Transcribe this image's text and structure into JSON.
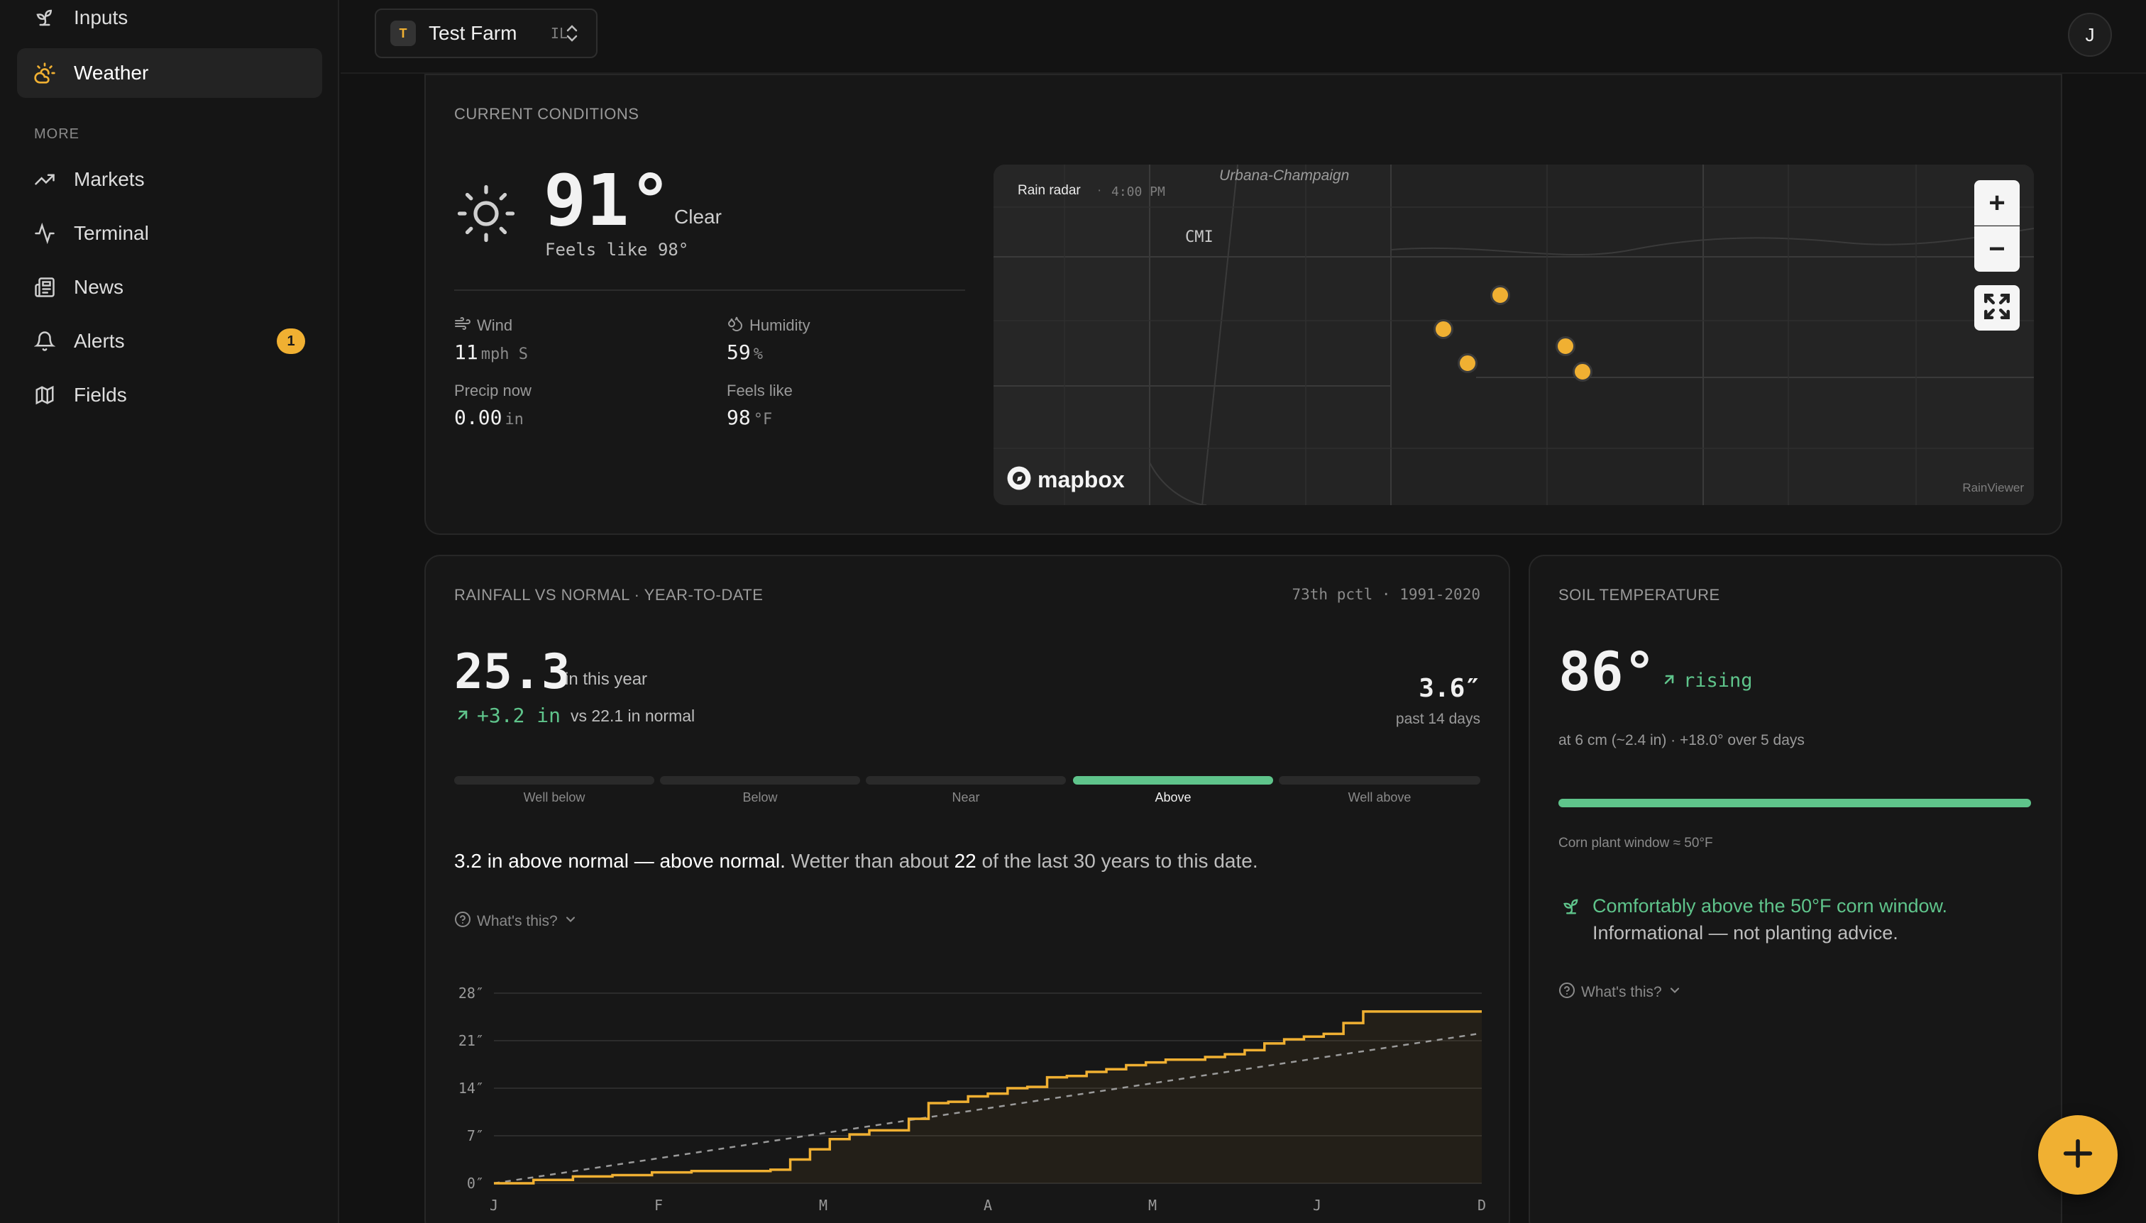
{
  "sidebar": {
    "items": [
      {
        "label": "Inputs",
        "icon": "seedling-icon",
        "active": false
      },
      {
        "label": "Weather",
        "icon": "sun-cloud-icon",
        "active": true
      },
      {
        "label": "Markets",
        "icon": "trending-up-icon",
        "active": false
      },
      {
        "label": "Terminal",
        "icon": "activity-icon",
        "active": false
      },
      {
        "label": "News",
        "icon": "newspaper-icon",
        "active": false
      },
      {
        "label": "Alerts",
        "icon": "bell-icon",
        "active": false,
        "badge": "1"
      },
      {
        "label": "Fields",
        "icon": "map-icon",
        "active": false
      }
    ],
    "more_label": "MORE"
  },
  "topbar": {
    "farm_initial": "T",
    "farm_name": "Test Farm",
    "farm_state": "IL",
    "user_initial": "J"
  },
  "current": {
    "label": "CURRENT CONDITIONS",
    "temp": "91°",
    "condition": "Clear",
    "feels_like_line": "Feels like 98°",
    "wind_label": "Wind",
    "wind_value": "11",
    "wind_unit": "mph S",
    "humidity_label": "Humidity",
    "humidity_value": "59",
    "humidity_unit": "%",
    "precip_label": "Precip now",
    "precip_value": "0.00",
    "precip_unit": "in",
    "feels_label": "Feels like",
    "feels_value": "98",
    "feels_unit": "°F"
  },
  "map": {
    "radar_label": "Rain radar",
    "radar_time": "4:00 PM",
    "place_label": "Urbana-Champaign",
    "airport_label": "CMI",
    "brand": "mapbox",
    "attribution": "RainViewer",
    "zoom_in": "+",
    "zoom_out": "−"
  },
  "rain": {
    "label": "RAINFALL VS NORMAL · YEAR-TO-DATE",
    "pctl": "73th pctl · 1991-2020",
    "total": "25.3",
    "total_suffix": "in this year",
    "delta": "+3.2 in",
    "delta_suffix": "vs 22.1 in normal",
    "past14_value": "3.6″",
    "past14_label": "past 14 days",
    "ranges": [
      "Well below",
      "Below",
      "Near",
      "Above",
      "Well above"
    ],
    "active_range": 3,
    "summary_strong": "3.2 in above normal — above normal.",
    "summary_prefix": "Wetter than about",
    "summary_num": "22",
    "summary_suffix": "of the last 30 years to this date.",
    "whats_this": "What's this?"
  },
  "chart_data": {
    "type": "line",
    "x_tick_labels": [
      "J",
      "F",
      "M",
      "A",
      "M",
      "J",
      "D"
    ],
    "y_tick_labels": [
      "28″",
      "21″",
      "14″",
      "7″",
      "0″"
    ],
    "ylim": [
      0,
      28
    ],
    "grid": true,
    "series": [
      {
        "color": "#f0b032",
        "style": "step",
        "x": [
          0,
          0.04,
          0.08,
          0.12,
          0.16,
          0.2,
          0.24,
          0.28,
          0.3,
          0.32,
          0.34,
          0.36,
          0.38,
          0.4,
          0.42,
          0.44,
          0.46,
          0.48,
          0.5,
          0.52,
          0.54,
          0.56,
          0.58,
          0.6,
          0.62,
          0.64,
          0.66,
          0.68,
          0.7,
          0.72,
          0.74,
          0.76,
          0.78,
          0.8,
          0.82,
          0.84,
          0.86,
          0.88,
          0.9,
          0.92,
          0.94,
          0.96,
          0.98,
          1.0
        ],
        "y": [
          0,
          0.5,
          1.0,
          1.2,
          1.6,
          1.8,
          1.8,
          2.0,
          3.5,
          5.0,
          6.5,
          7.2,
          7.8,
          7.8,
          9.5,
          11.8,
          12.0,
          12.8,
          13.2,
          14.0,
          14.2,
          15.6,
          15.8,
          16.4,
          16.8,
          17.4,
          17.8,
          18.2,
          18.2,
          18.6,
          19.0,
          19.6,
          20.6,
          21.2,
          21.6,
          22.0,
          23.6,
          25.3,
          25.3,
          25.3,
          25.3,
          25.3,
          25.3,
          25.3
        ]
      },
      {
        "color": "#9a9a9a",
        "style": "dashed",
        "x": [
          0,
          1.0
        ],
        "y": [
          0,
          22.1
        ]
      }
    ]
  },
  "soil": {
    "label": "SOIL TEMPERATURE",
    "temp": "86°",
    "trend": "rising",
    "detail": "at 6 cm (~2.4 in) · +18.0° over 5 days",
    "fill_fraction": 1.0,
    "window_label": "Corn plant window ≈ 50°F",
    "status_line": "Comfortably above the 50°F corn window.",
    "status_sub": "Informational — not planting advice.",
    "whats_this": "What's this?"
  },
  "colors": {
    "accent": "#f0b032",
    "positive": "#5fc48b"
  }
}
